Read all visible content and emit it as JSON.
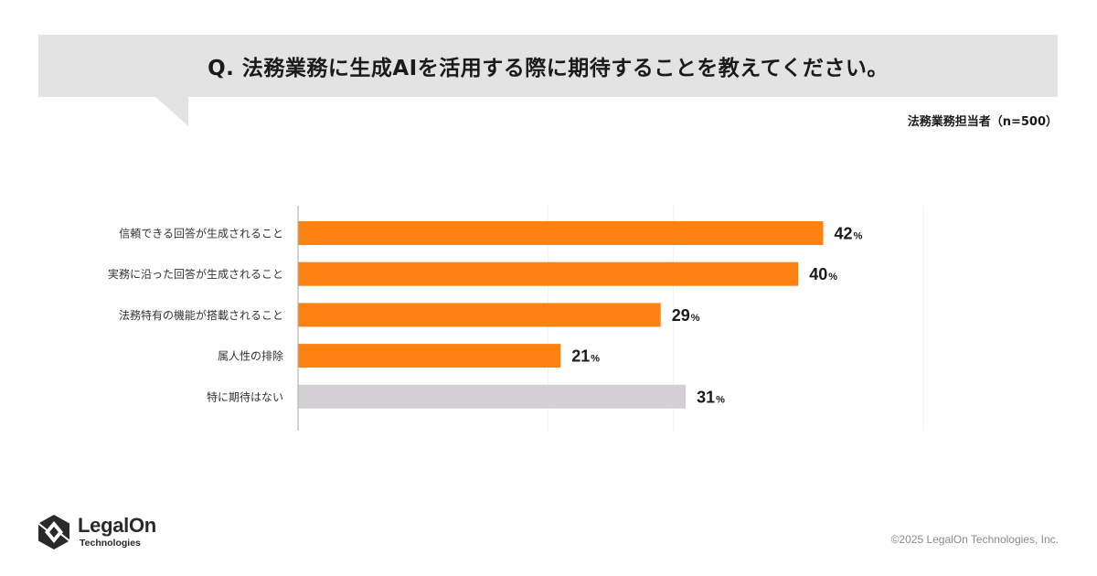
{
  "question": "Q. 法務業務に生成AIを活用する際に期待することを教えてください。",
  "sample_note": "法務業務担当者（n=500）",
  "chart_data": {
    "type": "bar",
    "orientation": "horizontal",
    "categories": [
      "信頼できる回答が生成されること",
      "実務に沿った回答が生成されること",
      "法務特有の機能が搭載されること",
      "属人性の排除",
      "特に期待はない"
    ],
    "values": [
      42,
      40,
      29,
      21,
      31
    ],
    "unit": "%",
    "bar_colors": [
      "#fb8210",
      "#fb8210",
      "#fb8210",
      "#fb8210",
      "#d2d0d3"
    ],
    "xlim": [
      0,
      50
    ],
    "grid": true,
    "gridlines_at": [
      20,
      30,
      50
    ]
  },
  "footer": {
    "logo_name": "LegalOn",
    "logo_sub": "Technologies",
    "copyright": "©2025 LegalOn Technologies, Inc."
  },
  "colors": {
    "accent": "#fb8210",
    "neutral_bar": "#d2d0d3",
    "banner": "#e3e3e4"
  }
}
